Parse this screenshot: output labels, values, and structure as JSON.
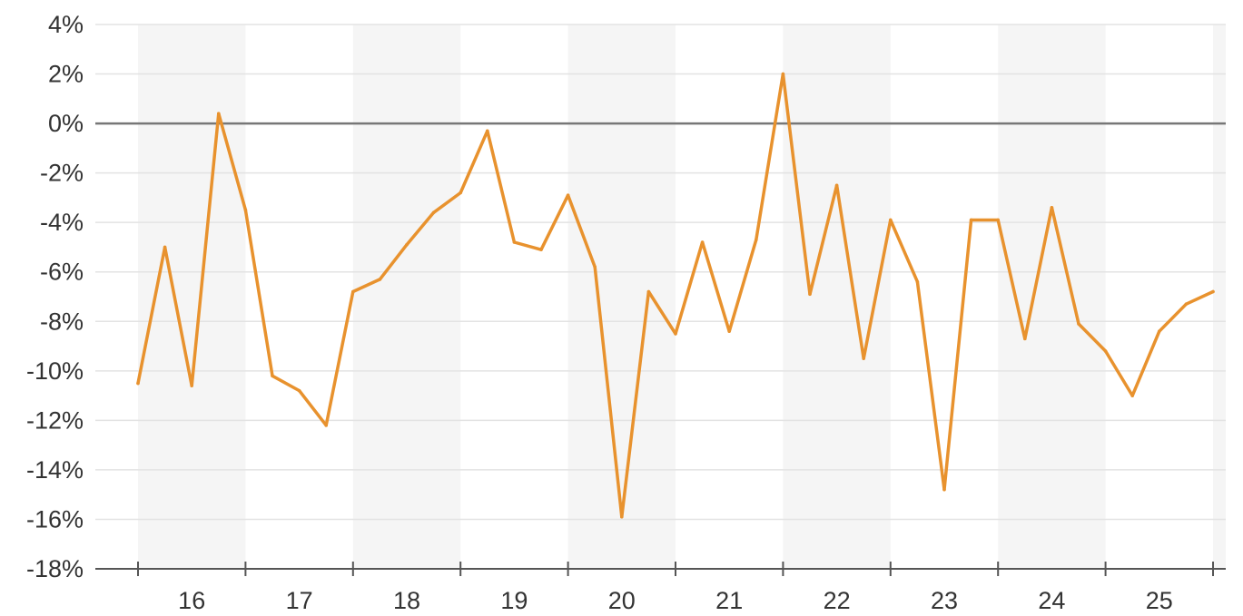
{
  "chart_data": {
    "type": "line",
    "title": "",
    "xlabel": "",
    "ylabel": "",
    "ylim": [
      -18,
      4
    ],
    "y_ticks": [
      4,
      2,
      0,
      -2,
      -4,
      -6,
      -8,
      -10,
      -12,
      -14,
      -16,
      -18
    ],
    "y_tick_labels": [
      "4%",
      "2%",
      "0%",
      "-2%",
      "-4%",
      "-6%",
      "-8%",
      "-10%",
      "-12%",
      "-14%",
      "-16%",
      "-18%"
    ],
    "x_categories": [
      "16",
      "17",
      "18",
      "19",
      "20",
      "21",
      "22",
      "23",
      "24",
      "25"
    ],
    "x_range": [
      15.5,
      25.6
    ],
    "grid": true,
    "zero_line": true,
    "alternating_year_bands": true,
    "colors": {
      "line": "#e8922e",
      "grid": "#e3e3e3",
      "band": "#f5f5f5",
      "axis": "#555555",
      "zero_line": "#777777",
      "text": "#333333"
    },
    "series": [
      {
        "values": [
          [
            15.5,
            -10.5
          ],
          [
            15.75,
            -5.0
          ],
          [
            16.0,
            -10.6
          ],
          [
            16.25,
            0.4
          ],
          [
            16.5,
            -3.5
          ],
          [
            16.75,
            -10.2
          ],
          [
            17.0,
            -10.8
          ],
          [
            17.25,
            -12.2
          ],
          [
            17.5,
            -6.8
          ],
          [
            17.75,
            -6.3
          ],
          [
            18.0,
            -4.9
          ],
          [
            18.25,
            -3.6
          ],
          [
            18.5,
            -2.8
          ],
          [
            18.75,
            -0.3
          ],
          [
            19.0,
            -4.8
          ],
          [
            19.25,
            -5.1
          ],
          [
            19.5,
            -2.9
          ],
          [
            19.75,
            -5.8
          ],
          [
            20.0,
            -15.9
          ],
          [
            20.25,
            -6.8
          ],
          [
            20.5,
            -8.5
          ],
          [
            20.75,
            -4.8
          ],
          [
            21.0,
            -8.4
          ],
          [
            21.25,
            -4.7
          ],
          [
            21.5,
            2.0
          ],
          [
            21.75,
            -6.9
          ],
          [
            22.0,
            -2.5
          ],
          [
            22.25,
            -9.5
          ],
          [
            22.5,
            -3.9
          ],
          [
            22.75,
            -6.4
          ],
          [
            23.0,
            -14.8
          ],
          [
            23.25,
            -3.9
          ],
          [
            23.5,
            -3.9
          ],
          [
            23.75,
            -8.7
          ],
          [
            24.0,
            -3.4
          ],
          [
            24.25,
            -8.1
          ],
          [
            24.5,
            -9.2
          ],
          [
            24.75,
            -11.0
          ],
          [
            25.0,
            -8.4
          ],
          [
            25.25,
            -7.3
          ],
          [
            25.5,
            -6.8
          ]
        ]
      }
    ]
  }
}
